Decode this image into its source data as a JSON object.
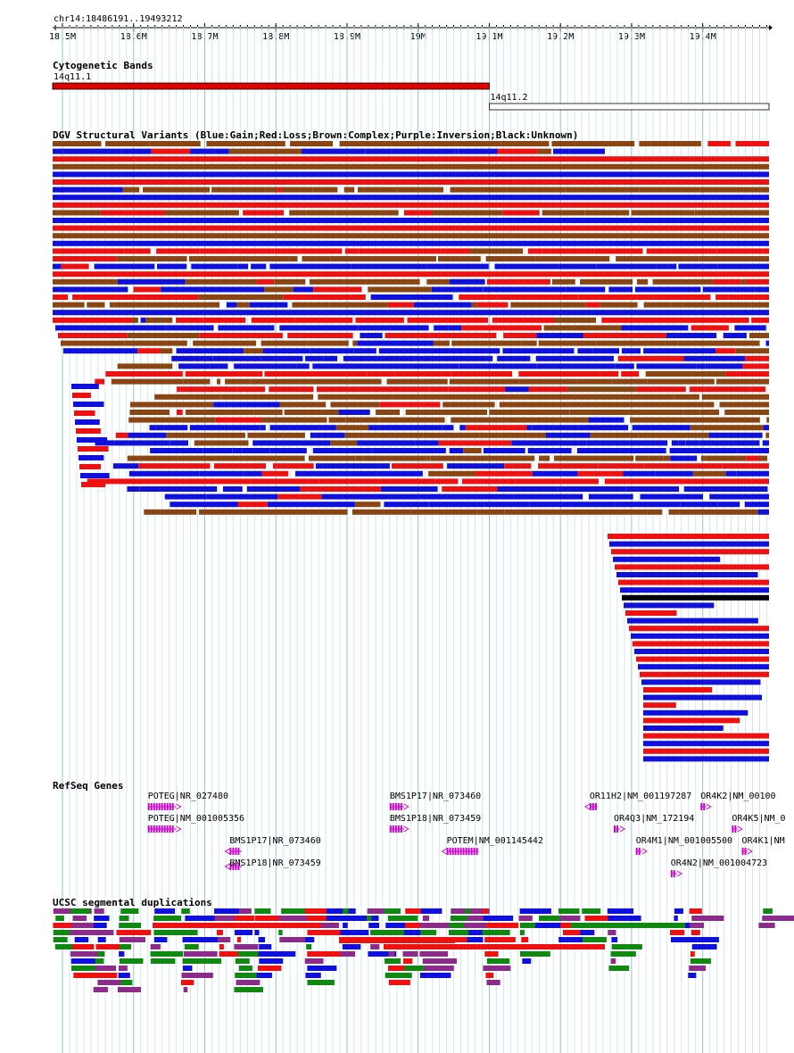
{
  "ruler": {
    "region": "chr14:18486191..19493212",
    "ticks": [
      "18.5M",
      "18.6M",
      "18.7M",
      "18.8M",
      "18.9M",
      "19M",
      "19.1M",
      "19.2M",
      "19.3M",
      "19.4M"
    ]
  },
  "cytoband": {
    "title": "Cytogenetic Bands",
    "bands": [
      {
        "name": "14q11.1",
        "start": 18486191,
        "end": 19100000,
        "color": "#e00000"
      },
      {
        "name": "14q11.2",
        "start": 19100000,
        "end": 19493212,
        "color": "#ffffff"
      }
    ]
  },
  "dgv": {
    "title": "DGV Structural Variants (Blue:Gain;Red:Loss;Brown:Complex;Purple:Inversion;Black:Unknown)",
    "colors": {
      "gain": "#1010dd",
      "loss": "#ee1111",
      "complex": "#8b4513",
      "inversion": "#800080",
      "unknown": "#000000"
    }
  },
  "refseq": {
    "title": "RefSeq Genes",
    "genes": [
      {
        "label": "POTEG|NR_027480",
        "start": 18620000,
        "end": 18660000,
        "strand": "+"
      },
      {
        "label": "POTEG|NM_001005356",
        "start": 18620000,
        "end": 18660000,
        "strand": "+"
      },
      {
        "label": "BMS1P17|NR_073460",
        "start": 18735000,
        "end": 18752000,
        "strand": "-"
      },
      {
        "label": "BMS1P18|NR_073459",
        "start": 18735000,
        "end": 18752000,
        "strand": "-"
      },
      {
        "label": "BMS1P17|NR_073460",
        "start": 18960000,
        "end": 18980000,
        "strand": "+"
      },
      {
        "label": "BMS1P18|NR_073459",
        "start": 18960000,
        "end": 18980000,
        "strand": "+"
      },
      {
        "label": "POTEM|NM_001145442",
        "start": 19040000,
        "end": 19085000,
        "strand": "-"
      },
      {
        "label": "OR11H2|NM_001197287",
        "start": 19241000,
        "end": 19252000,
        "strand": "-"
      },
      {
        "label": "OR4Q3|NM_172194",
        "start": 19275000,
        "end": 19284000,
        "strand": "+"
      },
      {
        "label": "OR4M1|NM_001005500",
        "start": 19306000,
        "end": 19315000,
        "strand": "+"
      },
      {
        "label": "OR4N2|NM_001004723",
        "start": 19355000,
        "end": 19364000,
        "strand": "+"
      },
      {
        "label": "OR4K2|NM_00100",
        "start": 19397000,
        "end": 19405000,
        "strand": "+"
      },
      {
        "label": "OR4K5|NM_0",
        "start": 19441000,
        "end": 19449000,
        "strand": "+"
      },
      {
        "label": "OR4K1|NM",
        "start": 19455000,
        "end": 19463000,
        "strand": "+"
      }
    ]
  },
  "segdups": {
    "title": "UCSC segmental duplications",
    "colors": [
      "#1010dd",
      "#ee1111",
      "#118811",
      "#8b2c8b"
    ]
  }
}
